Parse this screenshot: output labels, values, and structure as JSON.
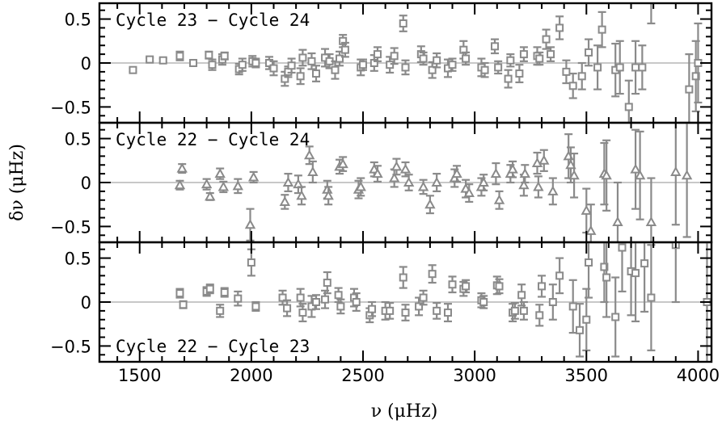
{
  "chart_data": {
    "type": "scatter",
    "xlabel": "ν (μHz)",
    "ylabel": "δν (μHz)",
    "xlim": [
      1320,
      4060
    ],
    "ylim": [
      -0.68,
      0.68
    ],
    "x_ticks": [
      "1500",
      "2000",
      "2500",
      "3000",
      "3500",
      "4000"
    ],
    "y_ticks": [
      "0.5",
      "0",
      "−0.5"
    ],
    "zero_line": true,
    "colors": {
      "points": "#8a8a8a",
      "zero": "#c8c8c8",
      "frame": "#000000"
    },
    "panels": [
      {
        "label": "Cycle 23 − Cycle 24",
        "label_position": "top-left",
        "marker": "square",
        "series": [
          {
            "x": [
              1470,
              1545,
              1605,
              1680,
              1740,
              1810,
              1825,
              1870,
              1880,
              1945,
              1960,
              2005,
              2020,
              2080,
              2100,
              2150,
              2165,
              2180,
              2220,
              2230,
              2270,
              2290,
              2330,
              2350,
              2375,
              2395,
              2410,
              2420,
              2490,
              2500,
              2550,
              2565,
              2620,
              2640,
              2680,
              2690,
              2760,
              2770,
              2810,
              2830,
              2880,
              2900,
              2950,
              2960,
              3030,
              3045,
              3090,
              3105,
              3150,
              3160,
              3200,
              3220,
              3280,
              3290,
              3320,
              3340,
              3380,
              3410,
              3440,
              3480,
              3510,
              3550,
              3570,
              3630,
              3650,
              3690,
              3720,
              3750,
              3790,
              3960,
              3990,
              4000
            ],
            "y": [
              -0.08,
              0.04,
              0.03,
              0.08,
              0.0,
              0.09,
              -0.02,
              0.04,
              0.08,
              -0.07,
              -0.02,
              0.02,
              0.0,
              0.0,
              -0.06,
              -0.18,
              -0.1,
              -0.03,
              -0.15,
              0.06,
              0.02,
              -0.12,
              0.06,
              0.02,
              -0.08,
              0.05,
              0.25,
              0.15,
              -0.05,
              -0.02,
              0.0,
              0.1,
              -0.02,
              0.08,
              0.45,
              -0.05,
              0.1,
              0.05,
              -0.08,
              0.03,
              -0.06,
              -0.02,
              0.15,
              0.05,
              -0.05,
              -0.08,
              0.19,
              -0.05,
              -0.18,
              0.03,
              -0.12,
              0.1,
              0.08,
              0.05,
              0.27,
              0.1,
              0.4,
              -0.1,
              -0.26,
              -0.15,
              0.12,
              -0.05,
              0.38,
              -0.08,
              -0.05,
              -0.5,
              -0.05,
              -0.05,
              0.75,
              -0.3,
              -0.15,
              0.0
            ],
            "err": [
              0.02,
              0.02,
              0.02,
              0.05,
              0.02,
              0.04,
              0.06,
              0.06,
              0.04,
              0.06,
              0.07,
              0.06,
              0.05,
              0.07,
              0.08,
              0.08,
              0.06,
              0.08,
              0.09,
              0.09,
              0.09,
              0.09,
              0.1,
              0.08,
              0.1,
              0.08,
              0.07,
              0.08,
              0.09,
              0.06,
              0.09,
              0.08,
              0.09,
              0.09,
              0.09,
              0.08,
              0.09,
              0.07,
              0.09,
              0.08,
              0.1,
              0.07,
              0.1,
              0.07,
              0.1,
              0.08,
              0.08,
              0.07,
              0.1,
              0.07,
              0.1,
              0.08,
              0.1,
              0.07,
              0.11,
              0.08,
              0.13,
              0.13,
              0.14,
              0.15,
              0.15,
              0.25,
              0.2,
              0.3,
              0.3,
              0.3,
              0.3,
              0.25,
              0.3,
              0.4,
              0.4,
              0.45
            ]
          }
        ]
      },
      {
        "label": "Cycle 22 − Cycle 24",
        "label_position": "top-left",
        "marker": "triangle",
        "series": [
          {
            "x": [
              1680,
              1690,
              1800,
              1815,
              1860,
              1875,
              1940,
              1995,
              2010,
              2150,
              2165,
              2210,
              2225,
              2260,
              2275,
              2340,
              2345,
              2395,
              2410,
              2480,
              2490,
              2550,
              2565,
              2640,
              2650,
              2690,
              2705,
              2770,
              2800,
              2830,
              2910,
              2920,
              2960,
              2975,
              3030,
              3040,
              3095,
              3110,
              3160,
              3170,
              3220,
              3225,
              3280,
              3285,
              3310,
              3350,
              3420,
              3430,
              3445,
              3500,
              3520,
              3580,
              3590,
              3640,
              3720,
              3740,
              3790,
              3900,
              3950
            ],
            "y": [
              -0.03,
              0.16,
              -0.02,
              -0.16,
              0.1,
              -0.05,
              -0.04,
              -0.48,
              0.06,
              -0.22,
              0.0,
              -0.02,
              -0.15,
              0.31,
              0.12,
              -0.08,
              -0.15,
              0.18,
              0.21,
              -0.08,
              -0.05,
              0.15,
              0.1,
              0.05,
              0.18,
              0.15,
              0.0,
              -0.05,
              -0.25,
              0.0,
              0.05,
              0.1,
              -0.07,
              -0.12,
              -0.05,
              0.0,
              0.1,
              -0.2,
              0.1,
              0.15,
              -0.03,
              0.1,
              0.22,
              -0.05,
              0.25,
              -0.1,
              0.3,
              0.2,
              0.08,
              -0.32,
              -0.55,
              0.1,
              0.08,
              -0.45,
              0.15,
              0.08,
              -0.45,
              0.12,
              0.08
            ],
            "err": [
              0.05,
              0.05,
              0.06,
              0.04,
              0.06,
              0.06,
              0.08,
              0.18,
              0.06,
              0.08,
              0.1,
              0.1,
              0.1,
              0.1,
              0.12,
              0.1,
              0.1,
              0.08,
              0.08,
              0.1,
              0.1,
              0.08,
              0.09,
              0.1,
              0.09,
              0.08,
              0.09,
              0.08,
              0.1,
              0.1,
              0.1,
              0.09,
              0.1,
              0.1,
              0.1,
              0.09,
              0.12,
              0.1,
              0.1,
              0.09,
              0.12,
              0.1,
              0.12,
              0.12,
              0.12,
              0.15,
              0.25,
              0.2,
              0.25,
              0.25,
              0.3,
              0.35,
              0.4,
              0.45,
              0.45,
              0.5,
              0.5,
              0.6,
              0.7
            ]
          }
        ]
      },
      {
        "label": "Cycle 22 − Cycle 23",
        "label_position": "bottom-left",
        "marker": "square",
        "series": [
          {
            "x": [
              1680,
              1695,
              1800,
              1815,
              1860,
              1880,
              1940,
              2000,
              2020,
              2140,
              2160,
              2220,
              2230,
              2270,
              2290,
              2330,
              2340,
              2390,
              2400,
              2460,
              2470,
              2530,
              2540,
              2600,
              2620,
              2680,
              2690,
              2750,
              2770,
              2810,
              2830,
              2880,
              2900,
              2950,
              2960,
              3030,
              3040,
              3100,
              3110,
              3170,
              3180,
              3210,
              3220,
              3290,
              3300,
              3350,
              3380,
              3440,
              3470,
              3500,
              3510,
              3580,
              3590,
              3630,
              3660,
              3700,
              3720,
              3760,
              3790,
              3900,
              4040
            ],
            "y": [
              0.1,
              -0.03,
              0.12,
              0.15,
              -0.1,
              0.11,
              0.04,
              0.45,
              -0.05,
              0.05,
              -0.07,
              0.05,
              -0.12,
              -0.05,
              0.0,
              0.03,
              0.22,
              0.08,
              -0.05,
              0.05,
              0.0,
              -0.15,
              -0.08,
              -0.1,
              -0.1,
              0.28,
              -0.12,
              -0.05,
              0.05,
              0.32,
              -0.1,
              -0.12,
              0.2,
              0.15,
              0.18,
              0.02,
              0.0,
              0.19,
              0.18,
              -0.12,
              -0.1,
              0.08,
              -0.1,
              -0.15,
              0.18,
              0.0,
              0.3,
              -0.05,
              -0.32,
              -0.2,
              0.45,
              0.4,
              0.28,
              -0.17,
              0.62,
              0.35,
              0.33,
              0.44,
              0.05,
              0.65,
              0.0
            ],
            "err": [
              0.05,
              0.04,
              0.05,
              0.05,
              0.07,
              0.05,
              0.08,
              0.15,
              0.05,
              0.08,
              0.09,
              0.1,
              0.1,
              0.12,
              0.08,
              0.1,
              0.12,
              0.08,
              0.08,
              0.1,
              0.1,
              0.08,
              0.08,
              0.1,
              0.09,
              0.12,
              0.09,
              0.1,
              0.08,
              0.1,
              0.09,
              0.1,
              0.09,
              0.08,
              0.07,
              0.08,
              0.07,
              0.1,
              0.08,
              0.1,
              0.09,
              0.12,
              0.1,
              0.12,
              0.12,
              0.2,
              0.2,
              0.3,
              0.3,
              0.35,
              0.4,
              0.4,
              0.45,
              0.45,
              0.5,
              0.5,
              0.55,
              0.55,
              0.6,
              0.65,
              0.7
            ]
          }
        ]
      }
    ]
  }
}
